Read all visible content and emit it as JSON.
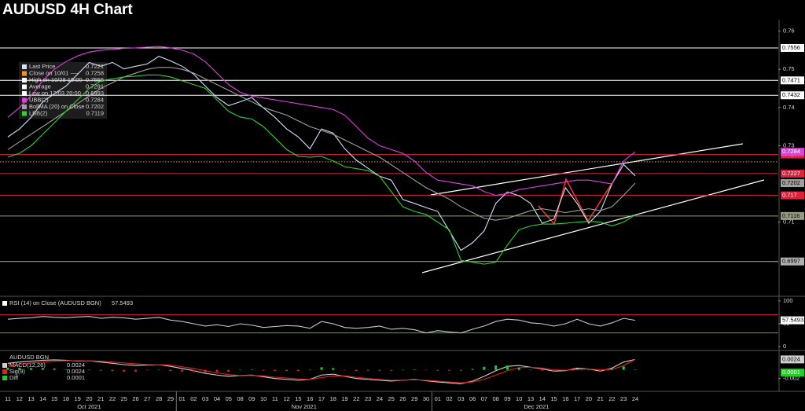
{
  "title": "AUDUSD 4H Chart",
  "chart_data": [
    {
      "type": "line",
      "categories": [
        "11",
        "12",
        "13",
        "14",
        "15",
        "18",
        "19",
        "20",
        "21",
        "22",
        "25",
        "26",
        "27",
        "28",
        "29",
        "01",
        "02",
        "03",
        "04",
        "05",
        "08",
        "09",
        "10",
        "11",
        "12",
        "15",
        "16",
        "17",
        "18",
        "19",
        "22",
        "23",
        "24",
        "25",
        "26",
        "29",
        "30",
        "01",
        "02",
        "03",
        "06",
        "07",
        "08",
        "09",
        "10",
        "13",
        "14",
        "15",
        "16",
        "17",
        "20",
        "21",
        "22",
        "23",
        "24"
      ],
      "months": [
        "Oct 2021",
        "Nov 2021",
        "Dec 2021"
      ],
      "ylim": [
        0.691,
        0.763
      ],
      "yticks": [
        0.71,
        0.73,
        0.74,
        0.75,
        0.76
      ],
      "series": [
        {
          "name": "Last Price",
          "color": "#cfe3ff",
          "legend_value": 0.7221,
          "values": [
            0.7323,
            0.7344,
            0.7374,
            0.7415,
            0.7436,
            0.7456,
            0.7487,
            0.7518,
            0.7508,
            0.7518,
            0.7501,
            0.7508,
            0.7514,
            0.7534,
            0.7522,
            0.7508,
            0.7487,
            0.7456,
            0.7426,
            0.7405,
            0.7415,
            0.7426,
            0.7399,
            0.7374,
            0.7344,
            0.7323,
            0.7292,
            0.7344,
            0.7333,
            0.7292,
            0.7262,
            0.7241,
            0.722,
            0.721,
            0.7159,
            0.7149,
            0.7138,
            0.7128,
            0.7077,
            0.7026,
            0.7046,
            0.7077,
            0.7149,
            0.7179,
            0.7169,
            0.7149,
            0.7097,
            0.7108,
            0.719,
            0.7149,
            0.7097,
            0.7128,
            0.72,
            0.7251,
            0.7221
          ]
        },
        {
          "name": "UBB(2)",
          "color": "#e040e0",
          "legend_value": 0.7284,
          "end_label": true,
          "values": [
            0.7374,
            0.74,
            0.743,
            0.747,
            0.75,
            0.752,
            0.7535,
            0.7545,
            0.755,
            0.7552,
            0.7555,
            0.7556,
            0.7558,
            0.756,
            0.7556,
            0.755,
            0.754,
            0.752,
            0.749,
            0.746,
            0.744,
            0.743,
            0.7425,
            0.742,
            0.7415,
            0.741,
            0.7405,
            0.74,
            0.7395,
            0.738,
            0.735,
            0.732,
            0.73,
            0.729,
            0.728,
            0.726,
            0.723,
            0.721,
            0.7205,
            0.72,
            0.7195,
            0.718,
            0.717,
            0.7175,
            0.7185,
            0.719,
            0.7195,
            0.72,
            0.7205,
            0.721,
            0.721,
            0.7205,
            0.72,
            0.726,
            0.7284
          ]
        },
        {
          "name": "BollMA (20) on Close",
          "color": "#a0a0a0",
          "legend_value": 0.7202,
          "end_label": true,
          "values": [
            0.729,
            0.731,
            0.733,
            0.735,
            0.737,
            0.739,
            0.741,
            0.743,
            0.745,
            0.7465,
            0.748,
            0.749,
            0.75,
            0.7505,
            0.7505,
            0.75,
            0.749,
            0.7475,
            0.746,
            0.7445,
            0.743,
            0.7415,
            0.74,
            0.739,
            0.738,
            0.7365,
            0.735,
            0.734,
            0.733,
            0.7315,
            0.73,
            0.7285,
            0.727,
            0.725,
            0.723,
            0.721,
            0.719,
            0.7175,
            0.716,
            0.714,
            0.7125,
            0.711,
            0.7105,
            0.711,
            0.712,
            0.713,
            0.7135,
            0.713,
            0.7125,
            0.713,
            0.7135,
            0.713,
            0.714,
            0.717,
            0.7202
          ]
        },
        {
          "name": "LBB(2)",
          "color": "#30d030",
          "legend_value": 0.7119,
          "values": [
            0.727,
            0.728,
            0.73,
            0.733,
            0.736,
            0.739,
            0.742,
            0.745,
            0.747,
            0.7475,
            0.748,
            0.7482,
            0.7485,
            0.7485,
            0.748,
            0.747,
            0.746,
            0.745,
            0.742,
            0.739,
            0.7375,
            0.737,
            0.735,
            0.732,
            0.729,
            0.7272,
            0.727,
            0.7272,
            0.726,
            0.7245,
            0.724,
            0.7235,
            0.722,
            0.718,
            0.714,
            0.7128,
            0.712,
            0.71,
            0.708,
            0.7,
            0.6995,
            0.699,
            0.6995,
            0.704,
            0.708,
            0.709,
            0.7095,
            0.7095,
            0.7097,
            0.71,
            0.7102,
            0.71,
            0.709,
            0.71,
            0.7119
          ]
        }
      ],
      "markers": [
        {
          "name": "Close on 10/01 ----",
          "value": 0.7258,
          "color": "#ff9020",
          "line_style": "dotted"
        },
        {
          "name": "High on 10/28 15:00",
          "value": 0.7556,
          "color": "#ffffff"
        },
        {
          "name": "Average",
          "value": 0.7291,
          "color": "#ffffff"
        },
        {
          "name": "Low on 12/03 20:00",
          "value": 0.6993,
          "color": "#ffffff"
        }
      ],
      "levels": [
        {
          "value": 0.7556,
          "color": "#ffffff"
        },
        {
          "value": 0.7471,
          "color": "#ffffff"
        },
        {
          "value": 0.7432,
          "color": "#ffffff"
        },
        {
          "value": 0.7277,
          "color": "#e0203c"
        },
        {
          "value": 0.7227,
          "color": "#e0203c"
        },
        {
          "value": 0.717,
          "color": "#e0203c"
        },
        {
          "value": 0.7116,
          "color": "#9a9a80"
        },
        {
          "value": 0.6997,
          "color": "#b0b0b0"
        }
      ]
    },
    {
      "type": "line",
      "title": "RSI (14) on Close (AUDUSD BGN)",
      "last_value": 57.5493,
      "ylim": [
        -5,
        105
      ],
      "yticks": [
        0,
        50,
        100
      ],
      "levels": [
        {
          "value": 70,
          "color": "#e0203c"
        },
        {
          "value": 30,
          "color": "#30c030"
        }
      ],
      "series": [
        {
          "color": "#c8c8c8",
          "values": [
            60,
            62,
            63,
            66,
            64,
            63,
            65,
            66,
            62,
            64,
            63,
            60,
            62,
            64,
            58,
            55,
            50,
            45,
            48,
            44,
            50,
            47,
            42,
            44,
            46,
            45,
            40,
            55,
            50,
            42,
            40,
            42,
            45,
            38,
            40,
            37,
            30,
            35,
            32,
            30,
            38,
            45,
            55,
            60,
            58,
            52,
            50,
            45,
            50,
            60,
            50,
            45,
            52,
            62,
            57.5493
          ]
        }
      ]
    },
    {
      "type": "macd",
      "title": "AUDUSD BGN",
      "ylim": [
        -0.0046,
        0.0041
      ],
      "yticks": [
        -0.002
      ],
      "series": [
        {
          "name": "MACD(12,26)",
          "color": "#d0d0d0",
          "legend_value": 0.0024,
          "end_label": true,
          "values": [
            0.0015,
            0.0018,
            0.002,
            0.0022,
            0.0023,
            0.0022,
            0.002,
            0.0021,
            0.0018,
            0.0015,
            0.0012,
            0.001,
            0.0011,
            0.0012,
            0.0008,
            0.0003,
            -0.0002,
            -0.0008,
            -0.0012,
            -0.0015,
            -0.0013,
            -0.0012,
            -0.0016,
            -0.002,
            -0.0022,
            -0.0024,
            -0.0022,
            -0.0012,
            -0.001,
            -0.0015,
            -0.002,
            -0.0022,
            -0.0024,
            -0.0026,
            -0.0024,
            -0.0022,
            -0.0025,
            -0.0028,
            -0.003,
            -0.0032,
            -0.0026,
            -0.0015,
            -0.0002,
            0.0008,
            0.001,
            0.0006,
            0.0002,
            -0.0003,
            -0.0002,
            0.0004,
            0.0002,
            -0.0003,
            0.0004,
            0.0018,
            0.0024
          ]
        },
        {
          "name": "Sig(9)",
          "color": "#e02020",
          "legend_value": 0.0024,
          "values": [
            0.001,
            0.0013,
            0.0016,
            0.0018,
            0.002,
            0.0021,
            0.0021,
            0.0021,
            0.002,
            0.0018,
            0.0016,
            0.0014,
            0.0012,
            0.0012,
            0.0011,
            0.0007,
            0.0003,
            -0.0002,
            -0.0007,
            -0.0011,
            -0.0013,
            -0.0013,
            -0.0014,
            -0.0017,
            -0.0019,
            -0.0021,
            -0.0022,
            -0.0018,
            -0.0014,
            -0.0014,
            -0.0017,
            -0.002,
            -0.0022,
            -0.0024,
            -0.0024,
            -0.0023,
            -0.0024,
            -0.0026,
            -0.0028,
            -0.003,
            -0.0028,
            -0.0022,
            -0.0012,
            -0.0002,
            0.0005,
            0.0006,
            0.0004,
            0,
            -0.0001,
            0.0001,
            0.0002,
            0,
            0.0001,
            0.001,
            0.0024
          ]
        },
        {
          "name": "Diff",
          "color": "#20d020",
          "negative_color": "#e02020",
          "legend_value": 0.0001,
          "bars": true,
          "end_label": true,
          "values": [
            0.0005,
            0.0005,
            0.0004,
            0.0004,
            0.0003,
            0.0001,
            -0.0001,
            0,
            -0.0002,
            -0.0003,
            -0.0004,
            -0.0004,
            -0.0001,
            0,
            -0.0003,
            -0.0004,
            -0.0005,
            -0.0006,
            -0.0005,
            -0.0004,
            0,
            0.0001,
            -0.0002,
            -0.0003,
            -0.0003,
            -0.0003,
            0,
            0.0006,
            0.0004,
            -0.0001,
            -0.0003,
            -0.0002,
            -0.0002,
            -0.0002,
            0,
            0.0001,
            -0.0001,
            -0.0002,
            -0.0002,
            -0.0002,
            0.0002,
            0.0007,
            0.001,
            0.001,
            0.0005,
            0,
            -0.0002,
            -0.0003,
            -0.0001,
            0.0003,
            0,
            -0.0003,
            0.0003,
            0.0008,
            0.0001
          ]
        }
      ]
    }
  ]
}
